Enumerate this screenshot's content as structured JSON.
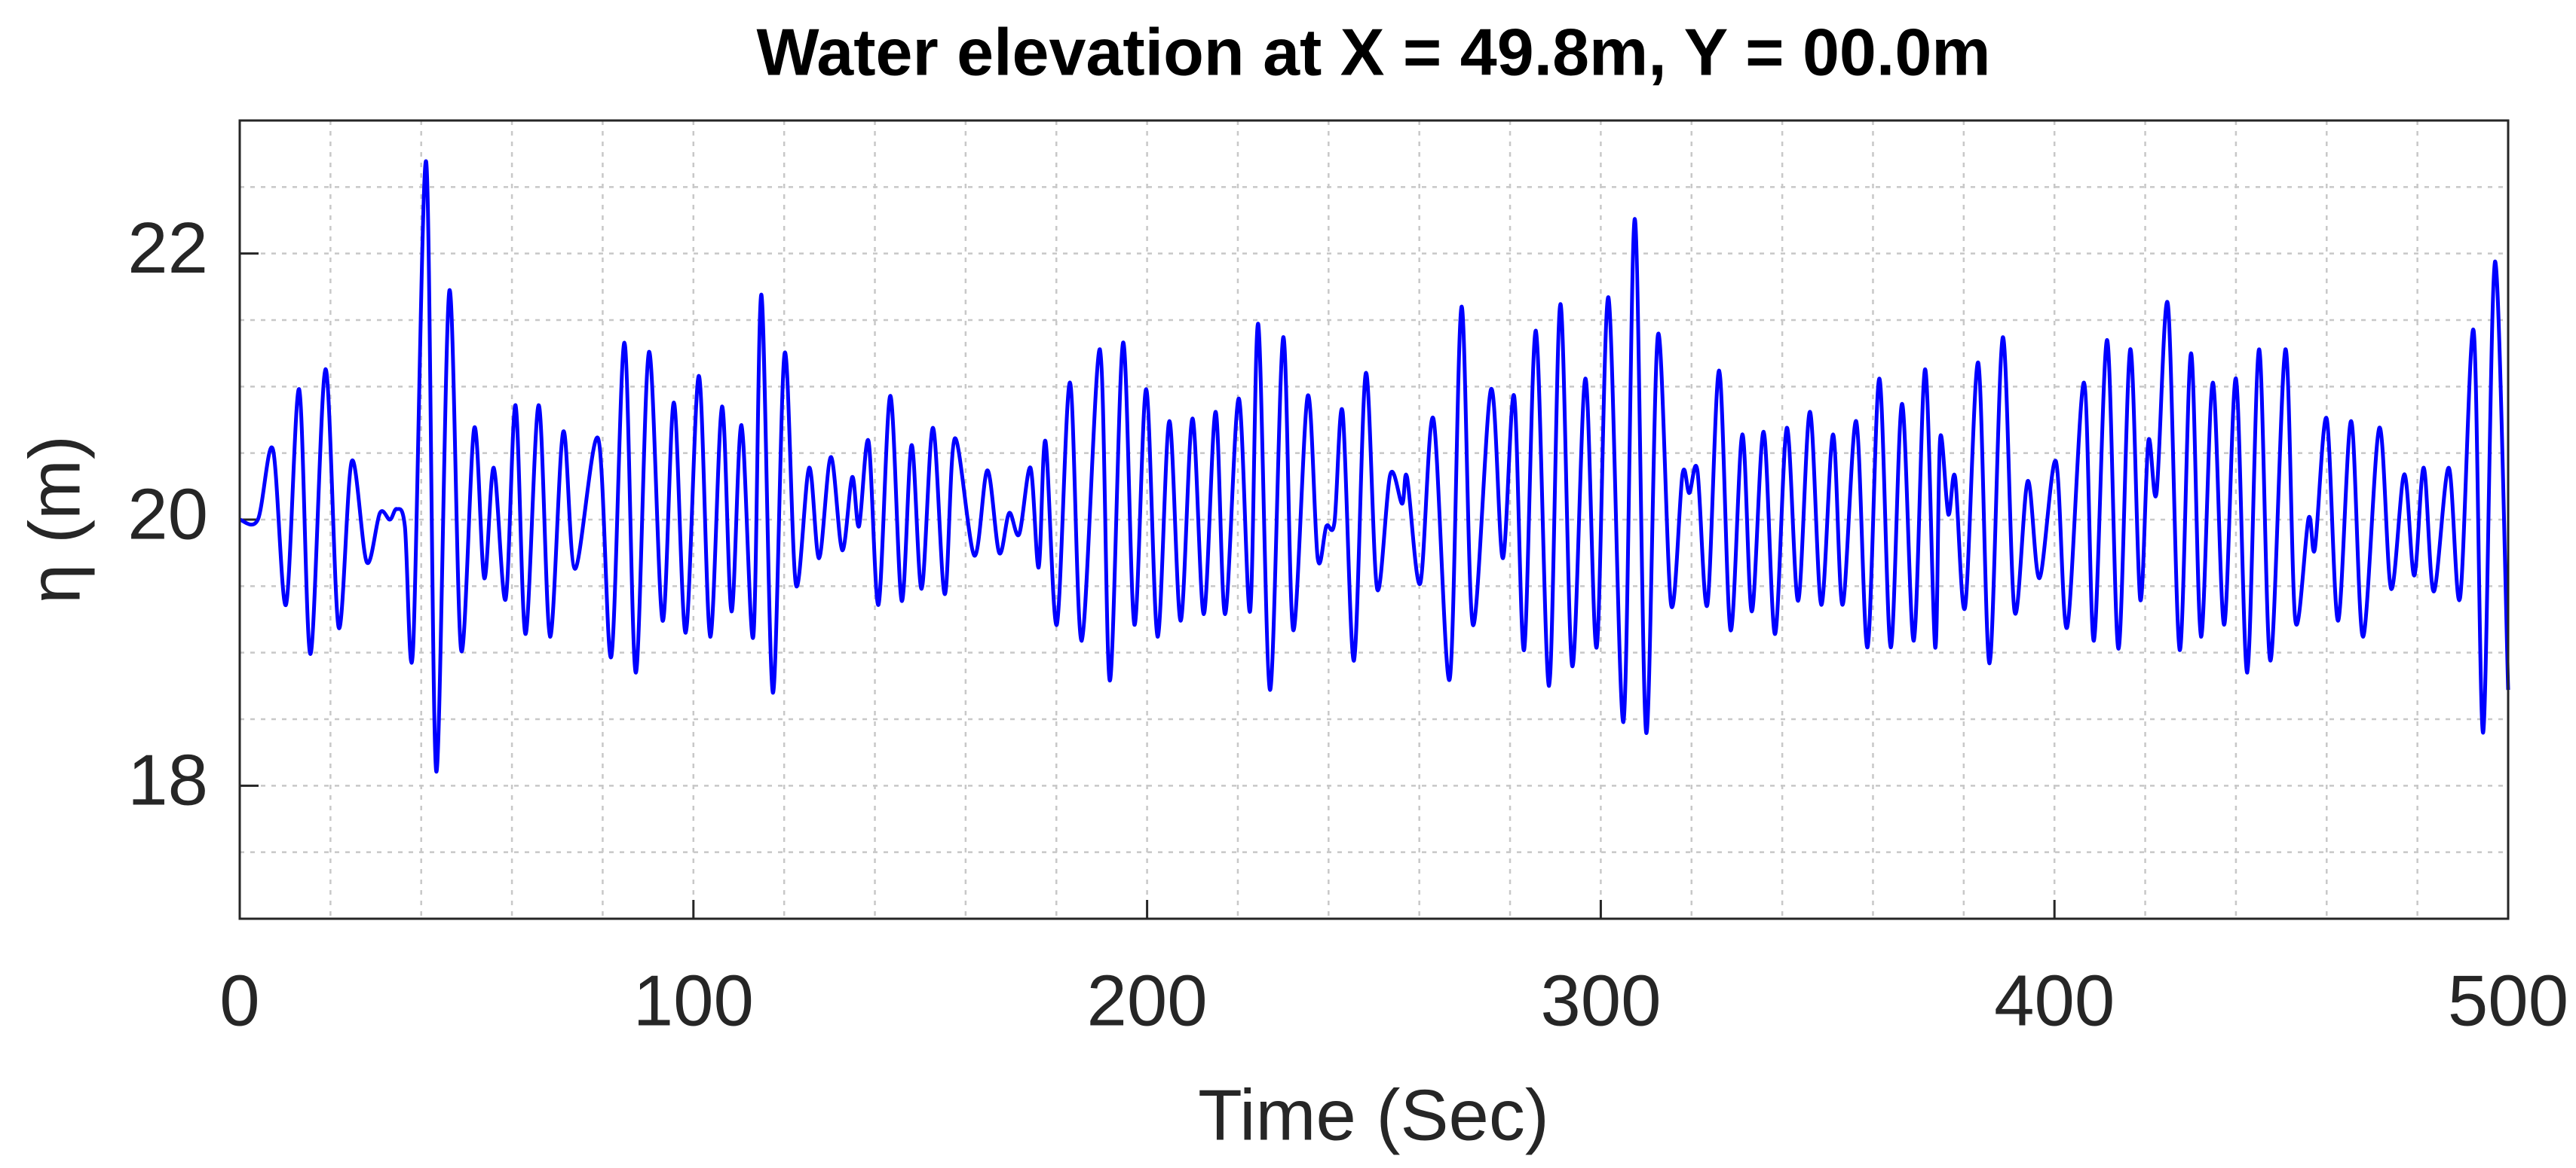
{
  "chart_data": {
    "type": "line",
    "title": "Water elevation at X = 49.8m, Y = 00.0m",
    "x_label": "Time (Sec)",
    "y_label": "η (m)",
    "xlim": [
      0,
      500
    ],
    "xticks": [
      0,
      100,
      200,
      300,
      400,
      500
    ],
    "xminorticks": [
      20,
      40,
      60,
      80,
      120,
      140,
      160,
      180,
      220,
      240,
      260,
      280,
      320,
      340,
      360,
      380,
      420,
      440,
      460,
      480
    ],
    "ylim": [
      17,
      23
    ],
    "yticks": [
      18,
      20,
      22
    ],
    "yminorticks": [
      17.5,
      18.5,
      19,
      19.5,
      20.5,
      21,
      21.5,
      22.5
    ],
    "grid": true,
    "x": [
      0,
      4,
      7.3,
      10.2,
      13.1,
      15.6,
      18.9,
      21.8,
      24.7,
      28.0,
      30.9,
      33.1,
      34.6,
      36.4,
      38.2,
      41.1,
      43.3,
      46.2,
      48.8,
      51.7,
      53.9,
      56.0,
      58.6,
      60.8,
      63.0,
      65.9,
      68.4,
      71.3,
      73.9,
      79.0,
      81.9,
      84.8,
      87.3,
      90.2,
      93.2,
      95.7,
      98.3,
      101.2,
      103.7,
      106.3,
      108.4,
      110.6,
      113.2,
      115.0,
      117.5,
      120.1,
      122.6,
      125.5,
      127.7,
      130.3,
      132.8,
      135.0,
      136.5,
      138.6,
      140.8,
      143.4,
      145.9,
      148.1,
      150.3,
      152.8,
      155.4,
      157.6,
      161.9,
      164.8,
      167.4,
      169.6,
      171.8,
      174.3,
      176.1,
      177.6,
      180.1,
      183.0,
      185.6,
      189.6,
      191.8,
      194.7,
      197.2,
      199.8,
      202.3,
      204.9,
      207.4,
      210.0,
      212.5,
      215.1,
      217.2,
      220.2,
      222.7,
      224.5,
      227.1,
      230.0,
      232.2,
      235.4,
      237.6,
      239.5,
      241.3,
      243.1,
      245.6,
      248.2,
      250.7,
      253.6,
      256.2,
      257.3,
      260.2,
      263.1,
      266.7,
      269.3,
      271.8,
      275.8,
      278.4,
      280.9,
      283.1,
      285.7,
      288.6,
      291.1,
      293.7,
      296.6,
      299.1,
      301.7,
      305.0,
      307.5,
      310.0,
      312.6,
      315.5,
      318.0,
      319.5,
      321.3,
      323.5,
      326.1,
      328.6,
      331.2,
      333.3,
      335.9,
      338.4,
      341.0,
      343.5,
      346.1,
      348.6,
      351.2,
      353.3,
      356.3,
      358.8,
      361.4,
      363.9,
      366.4,
      369.0,
      371.5,
      373.7,
      374.8,
      376.6,
      378.1,
      380.3,
      383.2,
      385.7,
      388.6,
      391.2,
      394.1,
      396.7,
      400.3,
      402.8,
      406.5,
      408.7,
      411.6,
      414.1,
      416.7,
      418.9,
      420.7,
      422.5,
      425.0,
      427.6,
      430.1,
      432.3,
      434.9,
      437.4,
      440.0,
      442.5,
      445.1,
      447.6,
      450.9,
      453.1,
      456.0,
      457.4,
      460.0,
      462.5,
      465.4,
      468.0,
      471.6,
      474.2,
      477.1,
      479.3,
      481.4,
      483.6,
      486.9,
      489.4,
      492.4,
      494.5,
      497.1,
      500.0
    ],
    "series": [
      {
        "color": "#0000ff",
        "values": [
          20.0,
          20.0,
          20.53,
          19.36,
          20.98,
          18.99,
          21.13,
          19.19,
          20.44,
          19.68,
          20.05,
          20.0,
          20.08,
          19.95,
          19.02,
          22.69,
          18.11,
          21.72,
          19.02,
          20.69,
          19.56,
          20.39,
          19.4,
          20.86,
          19.14,
          20.86,
          19.12,
          20.66,
          19.63,
          20.61,
          18.97,
          21.33,
          18.85,
          21.26,
          19.24,
          20.88,
          19.15,
          21.08,
          19.12,
          20.85,
          19.31,
          20.71,
          19.12,
          21.69,
          18.7,
          21.25,
          19.51,
          20.39,
          19.71,
          20.47,
          19.77,
          20.32,
          19.95,
          20.59,
          19.36,
          20.93,
          19.39,
          20.56,
          19.48,
          20.69,
          19.44,
          20.61,
          19.73,
          20.37,
          19.75,
          20.05,
          19.89,
          20.39,
          19.64,
          20.59,
          19.21,
          21.03,
          19.09,
          21.28,
          18.79,
          21.33,
          19.21,
          20.98,
          19.12,
          20.74,
          19.24,
          20.76,
          19.29,
          20.81,
          19.29,
          20.91,
          19.31,
          21.47,
          18.72,
          21.37,
          19.17,
          20.93,
          19.71,
          19.95,
          19.98,
          20.81,
          18.94,
          21.1,
          19.48,
          20.34,
          20.12,
          20.32,
          19.52,
          20.76,
          18.8,
          21.6,
          19.21,
          20.98,
          19.71,
          20.93,
          19.02,
          21.42,
          18.75,
          21.62,
          18.9,
          21.06,
          19.04,
          21.67,
          18.48,
          22.26,
          18.4,
          21.39,
          19.36,
          20.34,
          20.2,
          20.37,
          19.36,
          21.12,
          19.17,
          20.64,
          19.31,
          20.66,
          19.14,
          20.69,
          19.39,
          20.81,
          19.36,
          20.64,
          19.36,
          20.74,
          19.04,
          21.06,
          19.04,
          20.87,
          19.09,
          21.13,
          19.04,
          20.61,
          20.04,
          20.32,
          19.34,
          21.18,
          18.92,
          21.37,
          19.31,
          20.29,
          19.56,
          20.44,
          19.19,
          21.03,
          19.09,
          21.35,
          19.03,
          21.28,
          19.4,
          20.59,
          20.2,
          21.62,
          19.02,
          21.25,
          19.12,
          21.03,
          19.21,
          21.06,
          18.85,
          21.28,
          18.94,
          21.28,
          19.24,
          20.01,
          19.78,
          20.76,
          19.24,
          20.74,
          19.12,
          20.69,
          19.48,
          20.34,
          19.58,
          20.39,
          19.46,
          20.39,
          19.41,
          21.42,
          18.4,
          21.94,
          18.72
        ]
      }
    ]
  }
}
